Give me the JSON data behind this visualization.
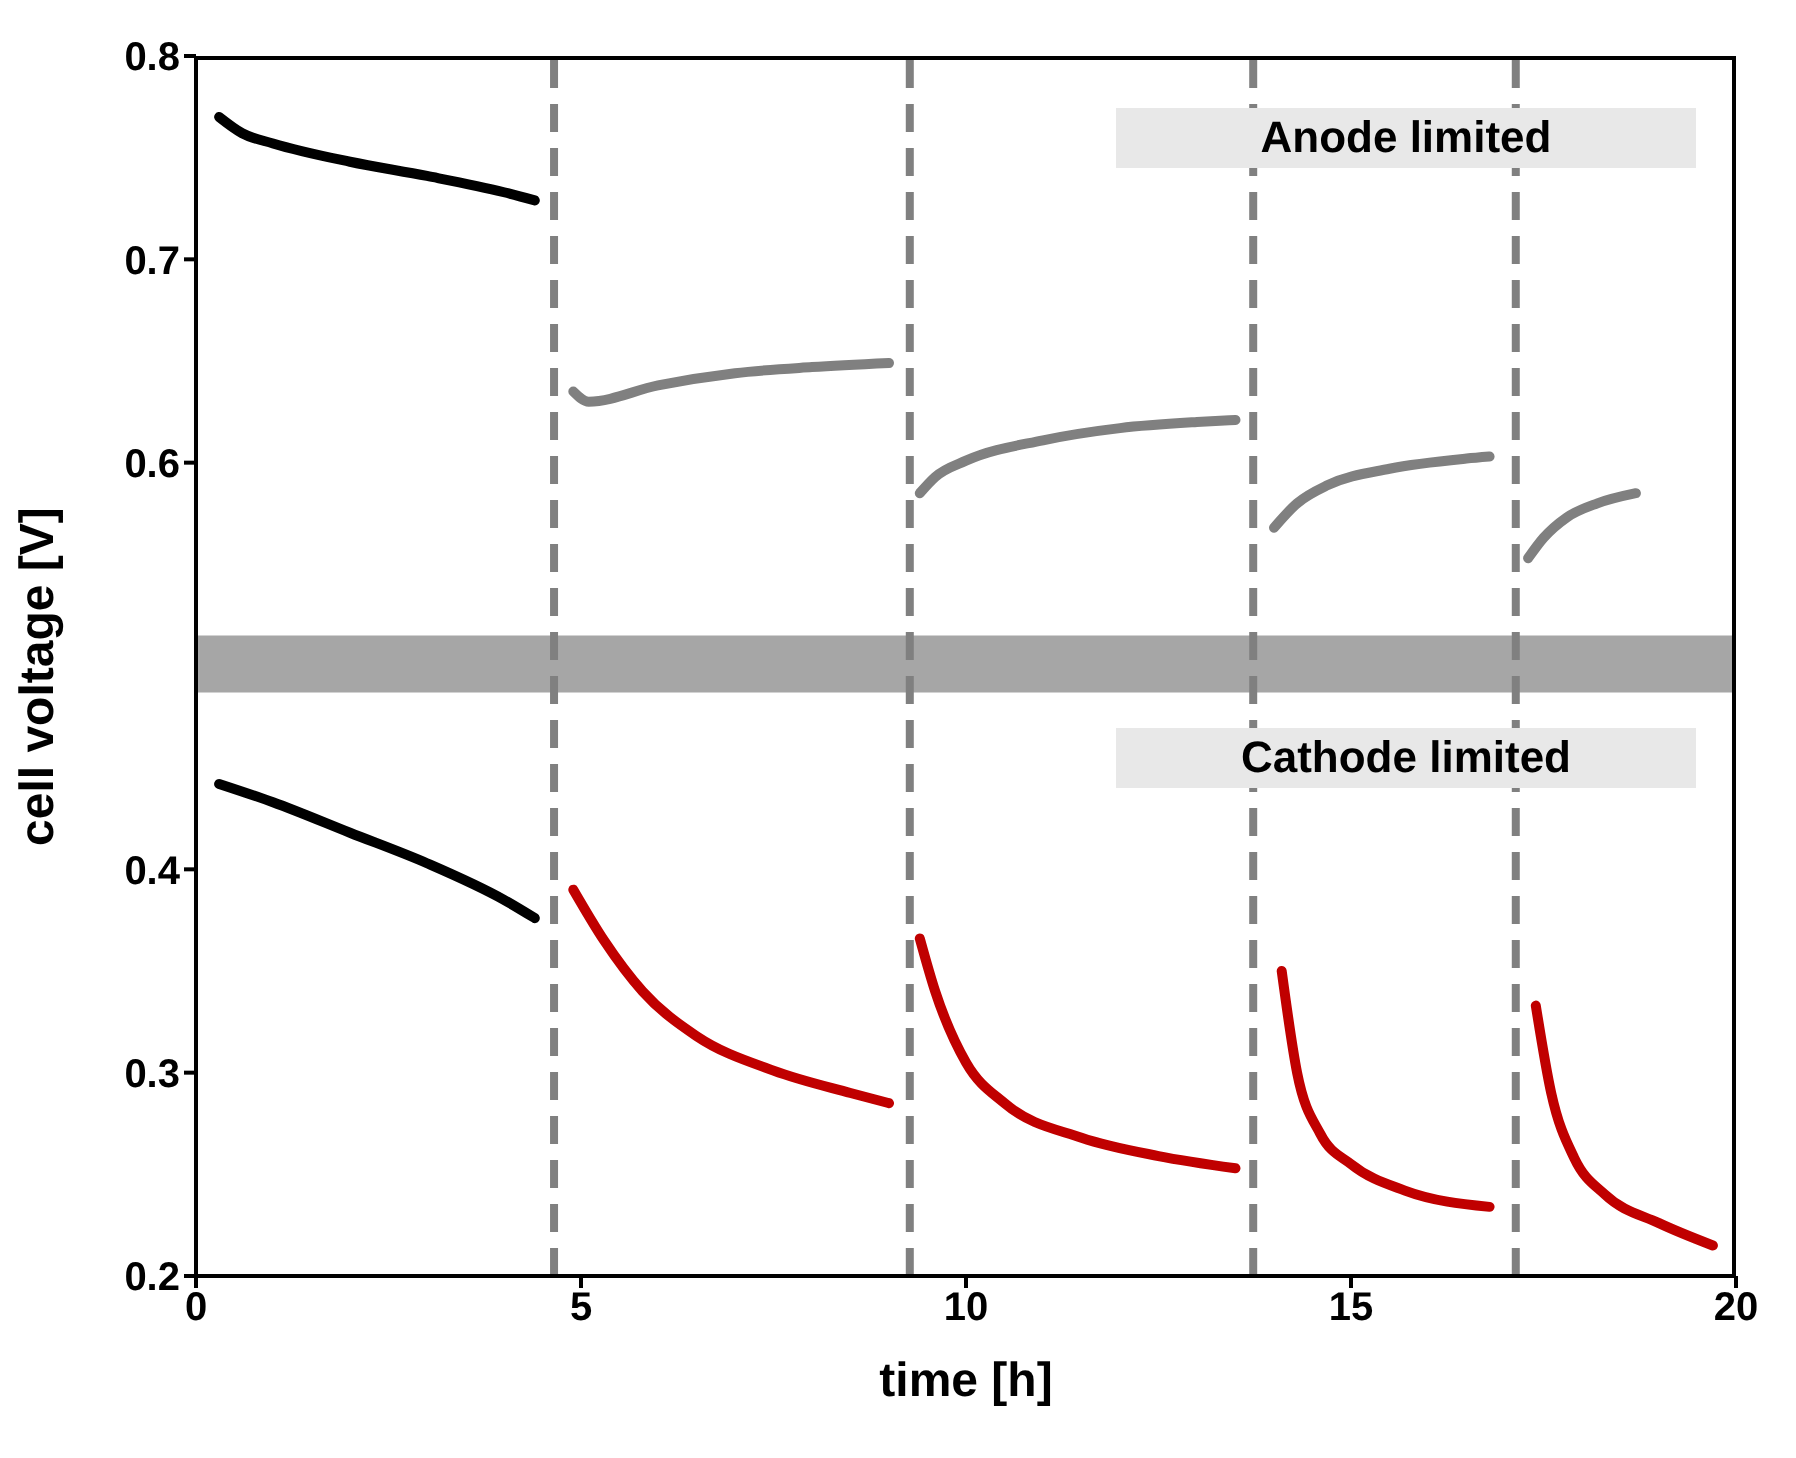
{
  "chart_data": {
    "type": "line",
    "xlabel": "time [h]",
    "ylabel": "cell voltage [V]",
    "xlim": [
      0,
      20
    ],
    "xticks": [
      0,
      5,
      10,
      15,
      20
    ],
    "ylim": [
      0.2,
      0.8
    ],
    "yticks": [
      0.2,
      0.3,
      0.4,
      0.6,
      0.7,
      0.8
    ],
    "grid": false,
    "legend": false,
    "marker": "none",
    "line_style": "solid",
    "series": [
      {
        "color": "#000000",
        "x": [
          0.3,
          0.6,
          1,
          2,
          3,
          4,
          4.4
        ],
        "values": [
          0.77,
          0.762,
          0.757,
          0.748,
          0.741,
          0.733,
          0.729
        ]
      },
      {
        "color": "#808080",
        "x": [
          4.9,
          5.1,
          6,
          7,
          8,
          9
        ],
        "values": [
          0.635,
          0.63,
          0.638,
          0.644,
          0.647,
          0.649
        ]
      },
      {
        "color": "#808080",
        "x": [
          9.4,
          9.6,
          10,
          11,
          12,
          13,
          13.5
        ],
        "values": [
          0.585,
          0.593,
          0.601,
          0.611,
          0.617,
          0.62,
          0.621
        ]
      },
      {
        "color": "#808080",
        "x": [
          14,
          14.3,
          14.7,
          15.5,
          16.5,
          16.8
        ],
        "values": [
          0.568,
          0.58,
          0.589,
          0.597,
          0.602,
          0.603
        ]
      },
      {
        "color": "#808080",
        "x": [
          17.3,
          17.5,
          17.8,
          18.2,
          18.7
        ],
        "values": [
          0.553,
          0.563,
          0.573,
          0.58,
          0.585
        ]
      },
      {
        "color": "#000000",
        "x": [
          0.3,
          1,
          2,
          3,
          4,
          4.4
        ],
        "values": [
          0.442,
          0.433,
          0.418,
          0.403,
          0.385,
          0.376
        ]
      },
      {
        "color": "#c00000",
        "x": [
          4.9,
          5.3,
          5.8,
          6.5,
          7.5,
          8.5,
          9
        ],
        "values": [
          0.39,
          0.365,
          0.34,
          0.318,
          0.301,
          0.29,
          0.285
        ]
      },
      {
        "color": "#c00000",
        "x": [
          9.4,
          9.6,
          10,
          10.5,
          11.5,
          12.5,
          13.5
        ],
        "values": [
          0.366,
          0.34,
          0.305,
          0.285,
          0.268,
          0.259,
          0.253
        ]
      },
      {
        "color": "#c00000",
        "x": [
          14.1,
          14.3,
          14.6,
          15,
          15.7,
          16.8
        ],
        "values": [
          0.35,
          0.3,
          0.27,
          0.255,
          0.242,
          0.234
        ]
      },
      {
        "color": "#c00000",
        "x": [
          17.4,
          17.6,
          17.9,
          18.3,
          19,
          19.7
        ],
        "values": [
          0.333,
          0.29,
          0.258,
          0.24,
          0.226,
          0.215
        ]
      }
    ],
    "ref_lines": [
      {
        "axis": "x",
        "value": 4.65,
        "color": "#808080",
        "line_style": "dashed"
      },
      {
        "axis": "x",
        "value": 9.27,
        "color": "#808080",
        "line_style": "dashed"
      },
      {
        "axis": "x",
        "value": 13.73,
        "color": "#808080",
        "line_style": "dashed"
      },
      {
        "axis": "x",
        "value": 17.14,
        "color": "#808080",
        "line_style": "dashed"
      }
    ],
    "bands": [
      {
        "axis": "y",
        "from": 0.487,
        "to": 0.515,
        "color": "#a6a6a6"
      }
    ],
    "annotations": [
      "Anode limited",
      "Cathode limited"
    ]
  }
}
